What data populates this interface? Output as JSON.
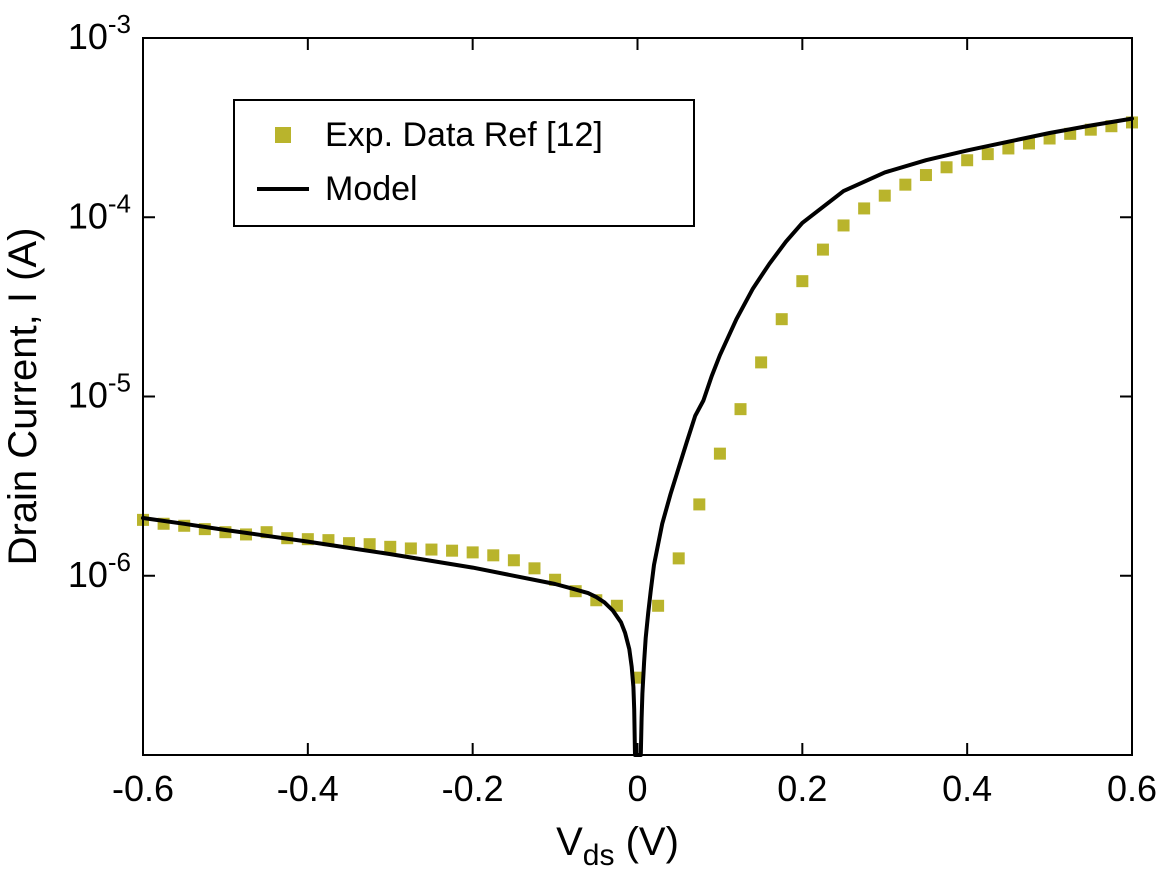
{
  "chart_data": {
    "type": "line",
    "title": "",
    "xlabel": {
      "base": "V",
      "sub": "ds",
      "unit": " (V)"
    },
    "ylabel": "Drain Current, I (A)",
    "xlim": [
      -0.6,
      0.6
    ],
    "ylim_log10": [
      -7,
      -3
    ],
    "grid": false,
    "legend": {
      "position": "top-left",
      "border": true
    },
    "x_ticks": [
      {
        "v": -0.6,
        "label": "-0.6"
      },
      {
        "v": -0.4,
        "label": "-0.4"
      },
      {
        "v": -0.2,
        "label": "-0.2"
      },
      {
        "v": 0.0,
        "label": "0"
      },
      {
        "v": 0.2,
        "label": "0.2"
      },
      {
        "v": 0.4,
        "label": "0.4"
      },
      {
        "v": 0.6,
        "label": "0.6"
      }
    ],
    "y_ticks": [
      {
        "exp": "-3"
      },
      {
        "exp": "-4"
      },
      {
        "exp": "-5"
      },
      {
        "exp": "-6"
      }
    ],
    "series": [
      {
        "name": "Exp. Data Ref [12]",
        "type": "scatter",
        "marker": "square",
        "color": "#b9b42c",
        "x": [
          -0.6,
          -0.575,
          -0.55,
          -0.525,
          -0.5,
          -0.475,
          -0.45,
          -0.425,
          -0.4,
          -0.375,
          -0.35,
          -0.325,
          -0.3,
          -0.275,
          -0.25,
          -0.225,
          -0.2,
          -0.175,
          -0.15,
          -0.125,
          -0.1,
          -0.075,
          -0.05,
          -0.025,
          0.0,
          0.025,
          0.05,
          0.075,
          0.1,
          0.125,
          0.15,
          0.175,
          0.2,
          0.225,
          0.25,
          0.275,
          0.3,
          0.325,
          0.35,
          0.375,
          0.4,
          0.425,
          0.45,
          0.475,
          0.5,
          0.525,
          0.55,
          0.575,
          0.6
        ],
        "y": [
          2.05e-06,
          1.95e-06,
          1.9e-06,
          1.82e-06,
          1.75e-06,
          1.7e-06,
          1.75e-06,
          1.62e-06,
          1.6e-06,
          1.58e-06,
          1.52e-06,
          1.5e-06,
          1.45e-06,
          1.42e-06,
          1.4e-06,
          1.38e-06,
          1.35e-06,
          1.3e-06,
          1.22e-06,
          1.1e-06,
          9.5e-07,
          8.2e-07,
          7.3e-07,
          6.8e-07,
          2.7e-07,
          6.8e-07,
          1.25e-06,
          2.5e-06,
          4.8e-06,
          8.5e-06,
          1.55e-05,
          2.7e-05,
          4.4e-05,
          6.6e-05,
          9e-05,
          0.000112,
          0.000132,
          0.000152,
          0.000172,
          0.00019,
          0.000208,
          0.000225,
          0.000242,
          0.000258,
          0.000275,
          0.000292,
          0.000308,
          0.000322,
          0.000338
        ]
      },
      {
        "name": "Model",
        "type": "line",
        "color": "#000000",
        "width": 4,
        "x": [
          -0.6,
          -0.55,
          -0.5,
          -0.45,
          -0.4,
          -0.35,
          -0.3,
          -0.25,
          -0.2,
          -0.15,
          -0.1,
          -0.08,
          -0.06,
          -0.05,
          -0.04,
          -0.03,
          -0.02,
          -0.015,
          -0.01,
          -0.007,
          -0.005,
          -0.004,
          -0.003,
          0.004,
          0.005,
          0.006,
          0.008,
          0.01,
          0.013,
          0.016,
          0.02,
          0.03,
          0.04,
          0.05,
          0.06,
          0.07,
          0.08,
          0.09,
          0.1,
          0.12,
          0.14,
          0.16,
          0.18,
          0.2,
          0.25,
          0.3,
          0.35,
          0.4,
          0.45,
          0.5,
          0.55,
          0.6
        ],
        "y": [
          2.1e-06,
          1.95e-06,
          1.8e-06,
          1.67e-06,
          1.55e-06,
          1.43e-06,
          1.32e-06,
          1.21e-06,
          1.11e-06,
          1e-06,
          9e-07,
          8.5e-07,
          8e-07,
          7.6e-07,
          7.1e-07,
          6.4e-07,
          5.5e-07,
          4.8e-07,
          3.9e-07,
          3.1e-07,
          2.4e-07,
          1.8e-07,
          1e-07,
          1e-07,
          1.6e-07,
          2.2e-07,
          3.3e-07,
          4.5e-07,
          6.2e-07,
          8.2e-07,
          1.15e-06,
          1.95e-06,
          2.85e-06,
          4e-06,
          5.6e-06,
          7.8e-06,
          9.5e-06,
          1.3e-05,
          1.7e-05,
          2.7e-05,
          4e-05,
          5.5e-05,
          7.3e-05,
          9.3e-05,
          0.00014,
          0.000178,
          0.000208,
          0.000236,
          0.000264,
          0.000295,
          0.000325,
          0.000355
        ]
      }
    ]
  }
}
